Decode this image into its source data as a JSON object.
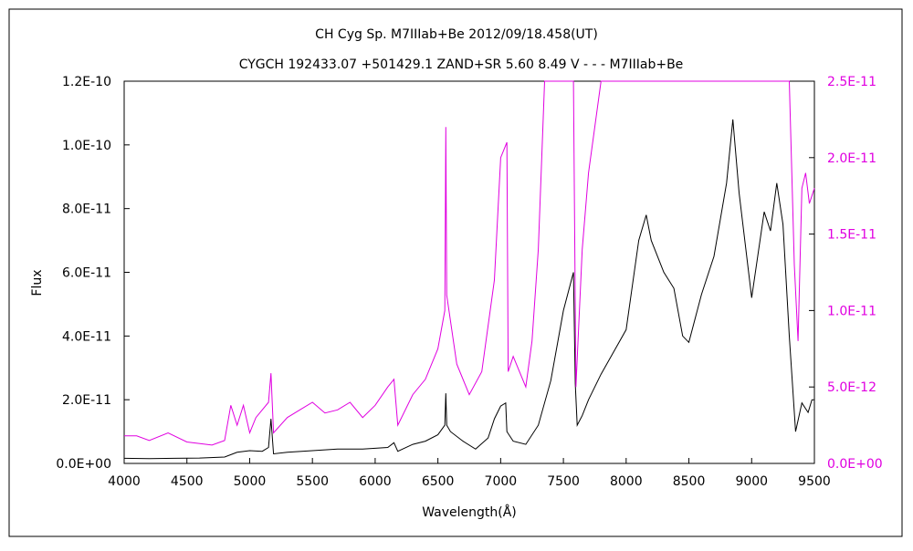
{
  "chart_data": {
    "type": "line",
    "title": "CH Cyg    Sp. M7IIIab+Be    2012/09/18.458(UT)",
    "subtitle": "CYGCH 192433.07 +501429.1 ZAND+SR 5.60 8.49  V - - - M7IIIab+Be",
    "xlabel": "Wavelength(Å)",
    "ylabel": "Flux",
    "xlim": [
      4000,
      9500
    ],
    "ylim_left": [
      0,
      1.2e-10
    ],
    "ylim_right": [
      0,
      2.5e-11
    ],
    "x_ticks": [
      "4000",
      "4500",
      "5000",
      "5500",
      "6000",
      "6500",
      "7000",
      "7500",
      "8000",
      "8500",
      "9000",
      "9500"
    ],
    "y_ticks_left": [
      "0.0E+00",
      "2.0E-11",
      "4.0E-11",
      "6.0E-11",
      "8.0E-11",
      "1.0E-10",
      "1.2E-10"
    ],
    "y_ticks_right": [
      "0.0E+00",
      "5.0E-12",
      "1.0E-11",
      "1.5E-11",
      "2.0E-11",
      "2.5E-11"
    ],
    "grid": false,
    "legend": "none",
    "series": [
      {
        "axis": "left",
        "color": "#000000",
        "points": [
          [
            4000,
            1.6e-12
          ],
          [
            4200,
            1.5e-12
          ],
          [
            4400,
            1.6e-12
          ],
          [
            4600,
            1.7e-12
          ],
          [
            4800,
            2e-12
          ],
          [
            4900,
            3.5e-12
          ],
          [
            5000,
            4e-12
          ],
          [
            5100,
            3.8e-12
          ],
          [
            5150,
            5e-12
          ],
          [
            5170,
            1.4e-11
          ],
          [
            5190,
            3e-12
          ],
          [
            5300,
            3.5e-12
          ],
          [
            5500,
            4e-12
          ],
          [
            5700,
            4.5e-12
          ],
          [
            5900,
            4.5e-12
          ],
          [
            6100,
            5e-12
          ],
          [
            6150,
            6.5e-12
          ],
          [
            6180,
            3.8e-12
          ],
          [
            6300,
            6e-12
          ],
          [
            6400,
            7e-12
          ],
          [
            6500,
            9e-12
          ],
          [
            6555,
            1.2e-11
          ],
          [
            6563,
            2.2e-11
          ],
          [
            6570,
            1.2e-11
          ],
          [
            6600,
            1e-11
          ],
          [
            6700,
            7e-12
          ],
          [
            6800,
            4.5e-12
          ],
          [
            6900,
            8e-12
          ],
          [
            6950,
            1.4e-11
          ],
          [
            7000,
            1.8e-11
          ],
          [
            7040,
            1.9e-11
          ],
          [
            7050,
            1e-11
          ],
          [
            7100,
            7e-12
          ],
          [
            7200,
            6e-12
          ],
          [
            7300,
            1.2e-11
          ],
          [
            7400,
            2.6e-11
          ],
          [
            7500,
            4.8e-11
          ],
          [
            7580,
            6e-11
          ],
          [
            7595,
            2.5e-11
          ],
          [
            7610,
            1.2e-11
          ],
          [
            7650,
            1.5e-11
          ],
          [
            7700,
            2e-11
          ],
          [
            7800,
            2.8e-11
          ],
          [
            7900,
            3.5e-11
          ],
          [
            8000,
            4.2e-11
          ],
          [
            8100,
            7e-11
          ],
          [
            8160,
            7.8e-11
          ],
          [
            8200,
            7e-11
          ],
          [
            8300,
            6e-11
          ],
          [
            8380,
            5.5e-11
          ],
          [
            8450,
            4e-11
          ],
          [
            8500,
            3.8e-11
          ],
          [
            8600,
            5.3e-11
          ],
          [
            8700,
            6.5e-11
          ],
          [
            8800,
            8.8e-11
          ],
          [
            8850,
            1.08e-10
          ],
          [
            8900,
            8.5e-11
          ],
          [
            9000,
            5.2e-11
          ],
          [
            9100,
            7.9e-11
          ],
          [
            9150,
            7.3e-11
          ],
          [
            9200,
            8.8e-11
          ],
          [
            9250,
            7.5e-11
          ],
          [
            9300,
            4e-11
          ],
          [
            9350,
            1e-11
          ],
          [
            9400,
            1.9e-11
          ],
          [
            9450,
            1.6e-11
          ],
          [
            9480,
            2e-11
          ],
          [
            9500,
            2e-11
          ]
        ]
      },
      {
        "axis": "right",
        "color": "#e000e0",
        "points": [
          [
            4000,
            1.8e-12
          ],
          [
            4100,
            1.8e-12
          ],
          [
            4200,
            1.5e-12
          ],
          [
            4350,
            2e-12
          ],
          [
            4500,
            1.4e-12
          ],
          [
            4700,
            1.2e-12
          ],
          [
            4800,
            1.5e-12
          ],
          [
            4850,
            3.8e-12
          ],
          [
            4900,
            2.5e-12
          ],
          [
            4950,
            3.8e-12
          ],
          [
            5000,
            2e-12
          ],
          [
            5050,
            3e-12
          ],
          [
            5150,
            4e-12
          ],
          [
            5170,
            5.9e-12
          ],
          [
            5190,
            2e-12
          ],
          [
            5300,
            3e-12
          ],
          [
            5400,
            3.5e-12
          ],
          [
            5500,
            4e-12
          ],
          [
            5600,
            3.3e-12
          ],
          [
            5700,
            3.5e-12
          ],
          [
            5800,
            4e-12
          ],
          [
            5900,
            3e-12
          ],
          [
            6000,
            3.8e-12
          ],
          [
            6100,
            5e-12
          ],
          [
            6150,
            5.5e-12
          ],
          [
            6180,
            2.5e-12
          ],
          [
            6300,
            4.5e-12
          ],
          [
            6400,
            5.5e-12
          ],
          [
            6500,
            7.5e-12
          ],
          [
            6555,
            1e-11
          ],
          [
            6563,
            2.2e-11
          ],
          [
            6570,
            1.1e-11
          ],
          [
            6650,
            6.5e-12
          ],
          [
            6750,
            4.5e-12
          ],
          [
            6850,
            6e-12
          ],
          [
            6950,
            1.2e-11
          ],
          [
            7000,
            2e-11
          ],
          [
            7050,
            2.1e-11
          ],
          [
            7060,
            6e-12
          ],
          [
            7100,
            7e-12
          ],
          [
            7200,
            5e-12
          ],
          [
            7250,
            8e-12
          ],
          [
            7300,
            1.4e-11
          ],
          [
            7350,
            2.5e-11
          ],
          [
            7580,
            2.5e-11
          ],
          [
            7600,
            5e-12
          ],
          [
            7650,
            1.4e-11
          ],
          [
            7700,
            1.9e-11
          ],
          [
            7800,
            2.5e-11
          ],
          [
            9300,
            2.5e-11
          ],
          [
            9340,
            1.3e-11
          ],
          [
            9370,
            8e-12
          ],
          [
            9400,
            1.8e-11
          ],
          [
            9430,
            1.9e-11
          ],
          [
            9460,
            1.7e-11
          ],
          [
            9500,
            1.8e-11
          ]
        ]
      }
    ]
  }
}
